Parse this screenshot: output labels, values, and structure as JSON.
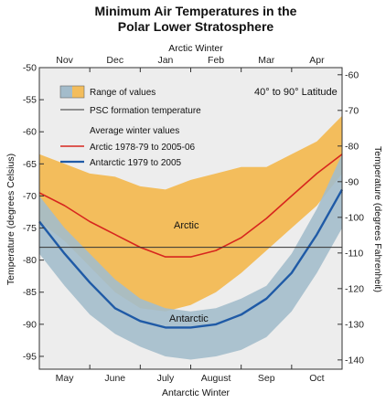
{
  "chart_data": {
    "type": "area",
    "title_line1": "Minimum Air Temperatures in the",
    "title_line2": "Polar Lower Stratosphere",
    "top_axis_title": "Arctic Winter",
    "bottom_axis_title": "Antarctic Winter",
    "ylabel_left": "Temperature (degrees Celsius)",
    "ylabel_right": "Temperature (degrees Fahrenheit)",
    "ylim_celsius": [
      -97,
      -50
    ],
    "ylim_fahrenheit": [
      -142.6,
      -58
    ],
    "y_ticks_celsius": [
      -50,
      -55,
      -60,
      -65,
      -70,
      -75,
      -80,
      -85,
      -90,
      -95
    ],
    "y_ticks_fahrenheit": [
      -60,
      -70,
      -80,
      -90,
      -100,
      -110,
      -120,
      -130,
      -140
    ],
    "x_range_months": [
      0,
      6
    ],
    "arctic_months": [
      "Nov",
      "Dec",
      "Jan",
      "Feb",
      "Mar",
      "Apr"
    ],
    "antarctic_months": [
      "May",
      "June",
      "July",
      "August",
      "Sep",
      "Oct"
    ],
    "latitude_note": "40° to 90° Latitude",
    "legend": {
      "range": "Range of values",
      "psc": "PSC formation temperature",
      "avg_header": "Average winter values",
      "arctic": "Arctic 1978-79 to 2005-06",
      "antarctic": "Antarctic 1979 to 2005"
    },
    "region_labels": {
      "arctic": "Arctic",
      "antarctic": "Antarctic"
    },
    "psc_temperature_c": -78,
    "colors": {
      "arctic_range": "#f3bd5c",
      "antarctic_range": "#a3bccb",
      "arctic_line": "#d7261e",
      "antarctic_line": "#1f5aa6",
      "psc_line": "#333333",
      "plot_background": "#ededed"
    },
    "series": [
      {
        "name": "Arctic 1978-79 to 2005-06",
        "x": [
          0,
          0.5,
          1,
          1.5,
          2,
          2.5,
          3,
          3.5,
          4,
          4.5,
          5,
          5.5,
          6
        ],
        "values": [
          -69.5,
          -71.5,
          -74,
          -76,
          -78,
          -79.5,
          -79.5,
          -78.5,
          -76.5,
          -73.5,
          -70,
          -66.5,
          -63.5
        ]
      },
      {
        "name": "Antarctic 1979 to 2005",
        "x": [
          0,
          0.5,
          1,
          1.5,
          2,
          2.5,
          3,
          3.5,
          4,
          4.5,
          5,
          5.5,
          6
        ],
        "values": [
          -74,
          -79,
          -83.5,
          -87.5,
          -89.5,
          -90.5,
          -90.5,
          -90,
          -88.5,
          -86,
          -82,
          -76,
          -69
        ]
      }
    ],
    "range_bands": [
      {
        "name": "Arctic range",
        "x": [
          0,
          0.5,
          1,
          1.5,
          2,
          2.5,
          3,
          3.5,
          4,
          4.5,
          5,
          5.5,
          6
        ],
        "upper": [
          -63.5,
          -65,
          -66.5,
          -67,
          -68.5,
          -69,
          -67.5,
          -66.5,
          -65.5,
          -65.5,
          -63.5,
          -61.5,
          -57.5
        ],
        "lower": [
          -74,
          -77,
          -81,
          -85,
          -87.5,
          -88,
          -87,
          -85,
          -82,
          -78.5,
          -75,
          -71.5,
          -66.5
        ]
      },
      {
        "name": "Antarctic range",
        "x": [
          0,
          0.5,
          1,
          1.5,
          2,
          2.5,
          3,
          3.5,
          4,
          4.5,
          5,
          5.5,
          6
        ],
        "upper": [
          -70,
          -75,
          -79,
          -83,
          -86,
          -87.5,
          -88,
          -87.5,
          -86,
          -84,
          -79,
          -72,
          -63.5
        ],
        "lower": [
          -79,
          -84,
          -88.5,
          -91.5,
          -93.5,
          -95,
          -95.5,
          -95,
          -94,
          -92,
          -88,
          -82,
          -75
        ]
      }
    ]
  }
}
